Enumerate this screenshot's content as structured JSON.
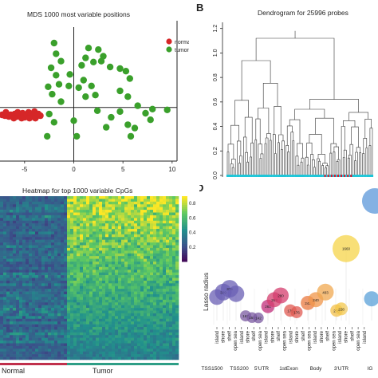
{
  "panels": {
    "mds": {
      "title": "MDS 1000 most variable positions",
      "legend": [
        {
          "label": "normal",
          "color": "#d62728"
        },
        {
          "label": "tumor",
          "color": "#3aa02b"
        }
      ],
      "xticks": [
        "-5",
        "0",
        "5",
        "10"
      ],
      "xlim": [
        -7.5,
        10.5
      ],
      "ylim": [
        -6.5,
        10.5
      ]
    },
    "dendrogram": {
      "letter": "B",
      "title": "Dendrogram for 25996 probes",
      "yticks": [
        "0.0",
        "0.2",
        "0.4",
        "0.6",
        "0.8",
        "1.0",
        "1.2"
      ],
      "ylim": [
        0,
        1.25
      ]
    },
    "heatmap": {
      "title": "Heatmap for top 1000 variable CpGs",
      "colorbar_ticks": [
        "0.8",
        "0.6",
        "0.4",
        "0.2"
      ],
      "group_labels": [
        "Normal",
        "Tumor"
      ],
      "group_colors": [
        "#c0304c",
        "#2e9e86"
      ]
    },
    "lasso": {
      "letter": "D",
      "ylabel": "Lasso radius",
      "group_labels": [
        "TSS1500",
        "TSS200",
        "5'UTR",
        "1stExon",
        "Body",
        "3'UTR",
        "IG"
      ]
    }
  },
  "chart_data": [
    {
      "type": "scatter",
      "title": "MDS 1000 most variable positions",
      "xlim": [
        -7.5,
        10.5
      ],
      "ylim": [
        -6.5,
        10.5
      ],
      "series": [
        {
          "name": "normal",
          "color": "#d62728",
          "points": [
            [
              -7.3,
              -0.9
            ],
            [
              -7.0,
              -1.0
            ],
            [
              -6.8,
              -0.8
            ],
            [
              -6.6,
              -1.1
            ],
            [
              -6.4,
              -0.9
            ],
            [
              -6.2,
              -1.0
            ],
            [
              -6.0,
              -0.8
            ],
            [
              -5.8,
              -1.1
            ],
            [
              -5.6,
              -0.9
            ],
            [
              -5.4,
              -1.0
            ],
            [
              -5.2,
              -0.7
            ],
            [
              -5.0,
              -1.2
            ],
            [
              -4.8,
              -0.9
            ],
            [
              -4.6,
              -0.6
            ],
            [
              -4.4,
              -1.0
            ],
            [
              -4.2,
              -1.1
            ],
            [
              -4.0,
              -0.5
            ],
            [
              -3.8,
              -1.0
            ],
            [
              -3.6,
              -0.8
            ],
            [
              -3.4,
              -1.0
            ],
            [
              -6.9,
              -0.6
            ],
            [
              -6.1,
              -1.3
            ],
            [
              -5.3,
              -1.3
            ],
            [
              -4.5,
              -1.3
            ],
            [
              -3.9,
              -1.3
            ],
            [
              -5.7,
              -0.6
            ]
          ]
        },
        {
          "name": "tumor",
          "color": "#3aa02b",
          "points": [
            [
              -2.0,
              7.8
            ],
            [
              -1.8,
              6.5
            ],
            [
              1.5,
              7.2
            ],
            [
              2.5,
              7.0
            ],
            [
              3.0,
              6.2
            ],
            [
              1.2,
              6.0
            ],
            [
              0.8,
              5.1
            ],
            [
              2.0,
              5.5
            ],
            [
              2.8,
              5.6
            ],
            [
              3.7,
              4.9
            ],
            [
              4.7,
              4.7
            ],
            [
              5.3,
              4.4
            ],
            [
              5.7,
              3.5
            ],
            [
              -1.3,
              5.6
            ],
            [
              -2.3,
              4.8
            ],
            [
              -1.8,
              3.9
            ],
            [
              -0.4,
              4.0
            ],
            [
              1.0,
              3.3
            ],
            [
              1.8,
              2.6
            ],
            [
              -1.5,
              2.8
            ],
            [
              -2.2,
              1.6
            ],
            [
              -2.6,
              2.5
            ],
            [
              -0.5,
              2.6
            ],
            [
              0.5,
              2.4
            ],
            [
              1.2,
              1.3
            ],
            [
              2.2,
              1.5
            ],
            [
              4.7,
              2.0
            ],
            [
              5.5,
              1.3
            ],
            [
              6.5,
              0.2
            ],
            [
              7.3,
              -0.7
            ],
            [
              8.0,
              -0.2
            ],
            [
              9.5,
              -0.3
            ],
            [
              -2.5,
              -0.8
            ],
            [
              -2.0,
              -1.8
            ],
            [
              0.0,
              -1.6
            ],
            [
              0.3,
              -3.5
            ],
            [
              -2.7,
              -3.5
            ],
            [
              2.4,
              -0.4
            ],
            [
              3.3,
              -2.4
            ],
            [
              5.5,
              -2.1
            ],
            [
              6.2,
              -2.5
            ],
            [
              5.8,
              -3.5
            ],
            [
              7.8,
              -1.5
            ],
            [
              3.8,
              -1.2
            ],
            [
              4.7,
              -0.5
            ],
            [
              -1.3,
              0.7
            ]
          ]
        }
      ]
    },
    {
      "type": "dendrogram",
      "title": "Dendrogram for 25996 probes",
      "ylim": [
        0,
        1.25
      ],
      "notes": "hierarchical clustering tree; leaf colour bar mostly cyan (tumor) with a red (normal) block"
    },
    {
      "type": "heatmap",
      "title": "Heatmap for top 1000 variable CpGs",
      "colorbar": {
        "min": 0.0,
        "max": 0.9,
        "ticks": [
          0.8,
          0.6,
          0.4,
          0.2
        ]
      },
      "column_groups": [
        "Normal",
        "Tumor"
      ]
    },
    {
      "type": "scatter",
      "ylabel": "Lasso radius",
      "categories": [
        "TSS1500",
        "TSS200",
        "5'UTR",
        "1stExon",
        "Body",
        "3'UTR",
        "IG"
      ],
      "bubbles": [
        {
          "group": "TSS1500",
          "value": 270,
          "color": "#6a5fb4",
          "label": ""
        },
        {
          "group": "TSS1500",
          "value": 300,
          "color": "#6a5fb4",
          "label": "309"
        },
        {
          "group": "TSS1500",
          "value": 320,
          "color": "#6a5fb4",
          "label": "325"
        },
        {
          "group": "TSS1500",
          "value": 290,
          "color": "#6a5fb4",
          "label": ""
        },
        {
          "group": "TSS200",
          "value": 158,
          "color": "#7a5aa0",
          "label": "167"
        },
        {
          "group": "TSS200",
          "value": 148,
          "color": "#7a5aa0",
          "label": "150"
        },
        {
          "group": "TSS200",
          "value": 146,
          "color": "#7a5aa0",
          "label": "142"
        },
        {
          "group": "5'UTR",
          "value": 215,
          "color": "#c02e7a",
          "label": "261"
        },
        {
          "group": "5'UTR",
          "value": 255,
          "color": "#d43d6e",
          "label": "263"
        },
        {
          "group": "5'UTR",
          "value": 280,
          "color": "#d43d6e",
          "label": "280"
        },
        {
          "group": "1stExon",
          "value": 190,
          "color": "#e05a52",
          "label": "175"
        },
        {
          "group": "1stExon",
          "value": 180,
          "color": "#e05a52",
          "label": "176"
        },
        {
          "group": "Body",
          "value": 235,
          "color": "#ea7a40",
          "label": "241"
        },
        {
          "group": "Body",
          "value": 255,
          "color": "#f0954a",
          "label": "240"
        },
        {
          "group": "Body",
          "value": 300,
          "color": "#f0a850",
          "label": "403"
        },
        {
          "group": "3'UTR",
          "value": 190,
          "color": "#f3c04a",
          "label": "278"
        },
        {
          "group": "3'UTR",
          "value": 200,
          "color": "#f3c74a",
          "label": "228"
        },
        {
          "group": "3'UTR",
          "value": 560,
          "color": "#f6d44a",
          "label": "1660"
        },
        {
          "group": "IG",
          "value": 260,
          "color": "#5aa0d8",
          "label": ""
        }
      ]
    }
  ]
}
